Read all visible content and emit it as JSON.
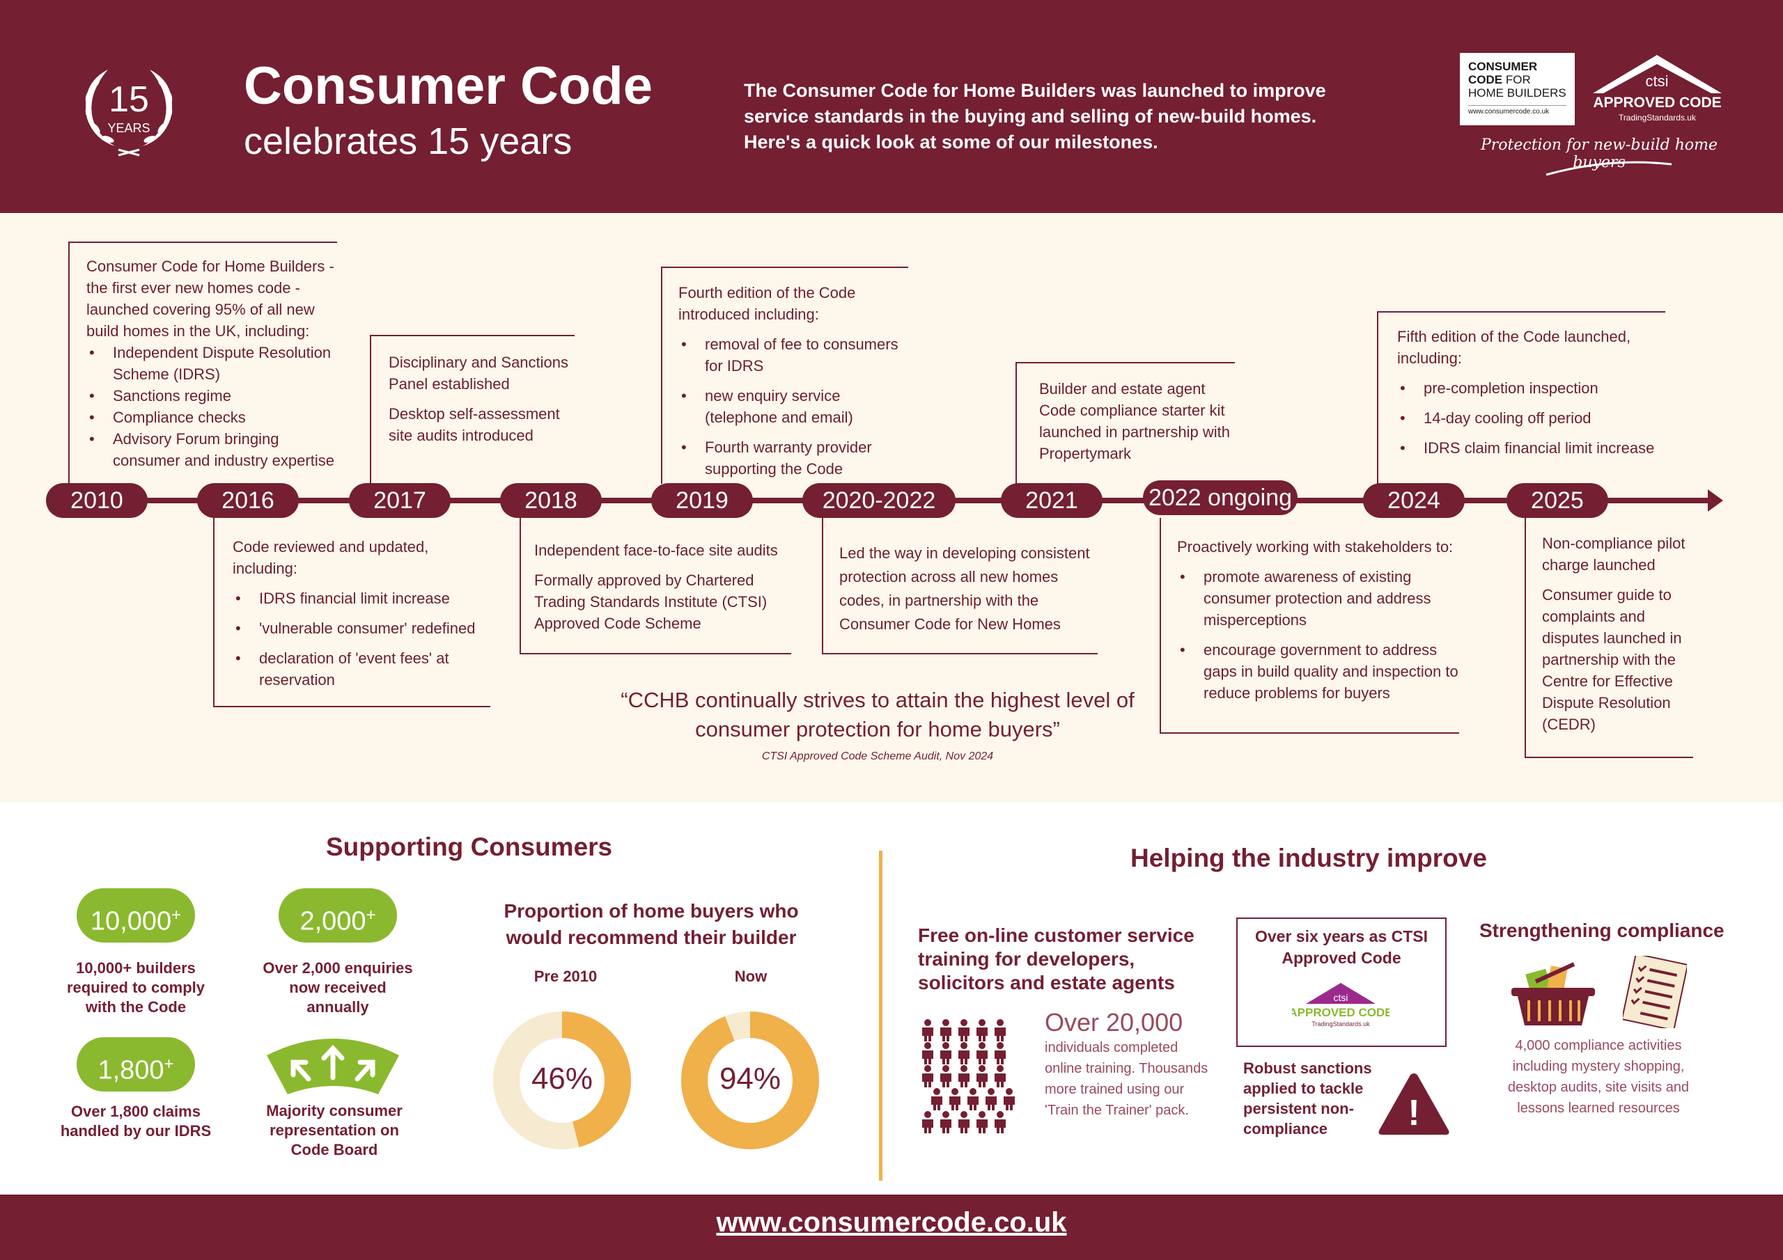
{
  "header": {
    "badge_number": "15",
    "badge_label": "YEARS",
    "title_line1": "Consumer Code",
    "title_line2": "celebrates 15 years",
    "intro": "The Consumer Code for Home Builders was launched to improve service standards in the buying and selling of new-build homes. Here's a quick look at some of our milestones.",
    "cc_logo": {
      "line1": "CONSUMER",
      "line2a": "CODE",
      "line2b": " FOR",
      "line3": "HOME BUILDERS",
      "url": "www.consumercode.co.uk"
    },
    "approved_logo": {
      "ctsi": "ctsi",
      "text": "APPROVED CODE",
      "sub": "TradingStandards.uk"
    },
    "tagline": "Protection for new-build home buyers"
  },
  "timeline": {
    "years": [
      "2010",
      "2016",
      "2017",
      "2018",
      "2019",
      "2020-2022",
      "2021",
      "2022 ongoing",
      "2024",
      "2025"
    ],
    "m2010": {
      "intro": "Consumer Code for Home Builders - the first ever new homes code - launched covering 95% of all new build homes in the UK, including:",
      "items": [
        "Independent Dispute Resolution Scheme (IDRS)",
        "Sanctions regime",
        "Compliance checks",
        "Advisory Forum bringing consumer and industry expertise"
      ]
    },
    "m2016": {
      "intro": "Code reviewed and updated, including:",
      "items": [
        "IDRS financial limit increase",
        "'vulnerable consumer' redefined",
        "declaration of 'event fees' at reservation"
      ]
    },
    "m2017": {
      "p1": "Disciplinary and Sanctions Panel established",
      "p2": "Desktop self-assessment site audits introduced"
    },
    "m2018": {
      "p1": "Independent face-to-face site audits",
      "p2": "Formally approved by Chartered Trading Standards Institute (CTSI) Approved Code Scheme"
    },
    "m2019": {
      "intro": "Fourth edition of the Code introduced including:",
      "items": [
        "removal of fee to consumers for IDRS",
        "new enquiry service (telephone and email)",
        "Fourth warranty provider supporting the Code"
      ]
    },
    "m2020": {
      "p1": "Led the way in developing consistent protection across all new homes codes, in partnership with the Consumer Code for New Homes"
    },
    "m2021": {
      "p1": "Builder and estate agent Code compliance starter kit launched in partnership with Propertymark"
    },
    "m2022": {
      "intro": "Proactively working with stakeholders to:",
      "items": [
        "promote awareness of existing consumer protection and address misperceptions",
        "encourage government to address gaps  in build quality and inspection to reduce problems for buyers"
      ]
    },
    "m2024": {
      "intro": "Fifth edition of the Code launched, including:",
      "items": [
        "pre-completion inspection",
        "14-day cooling off period",
        "IDRS claim financial limit increase"
      ]
    },
    "m2025": {
      "p1": "Non-compliance pilot charge launched",
      "p2": "Consumer guide to complaints and disputes launched in partnership with the Centre for Effective Dispute Resolution (CEDR)"
    },
    "quote": "“CCHB continually strives to attain the highest level of consumer protection for home buyers”",
    "quote_source": "CTSI Approved Code Scheme Audit, Nov 2024"
  },
  "supporting": {
    "title": "Supporting Consumers",
    "stats": [
      {
        "value": "10,000",
        "suffix": "+",
        "caption": "10,000+ builders required to comply with the Code"
      },
      {
        "value": "2,000",
        "suffix": "+",
        "caption": "Over 2,000 enquiries now received annually"
      },
      {
        "value": "1,800",
        "suffix": "+",
        "caption": "Over 1,800 claims handled by our IDRS"
      }
    ],
    "board_caption": "Majority consumer representation on Code Board",
    "donut_title": "Proportion of home buyers who would recommend their builder",
    "donuts": [
      {
        "label": "Pre 2010",
        "value": 46,
        "display": "46%"
      },
      {
        "label": "Now",
        "value": 94,
        "display": "94%"
      }
    ],
    "colors": {
      "green": "#8ab92f",
      "orange": "#f0b04a",
      "cream": "#f6ead0",
      "maroon": "#741f32"
    }
  },
  "industry": {
    "title": "Helping the industry improve",
    "training_title": "Free on-line customer service training for developers, solicitors and estate agents",
    "training_big": "Over 20,000",
    "training_text": "individuals completed online training. Thousands more trained using our 'Train the Trainer' pack.",
    "ctsi_title": "Over six years as CTSI Approved Code",
    "ctsi_logo": {
      "ctsi": "ctsi",
      "text": "APPROVED CODE",
      "sub": "TradingStandards.uk"
    },
    "sanctions": "Robust sanctions applied to tackle persistent non-compliance",
    "warning_mark": "!",
    "compliance_title": "Strengthening compliance",
    "compliance_text": "4,000 compliance activities including mystery shopping, desktop audits, site visits and lessons learned resources"
  },
  "footer": {
    "url": "www.consumercode.co.uk"
  }
}
